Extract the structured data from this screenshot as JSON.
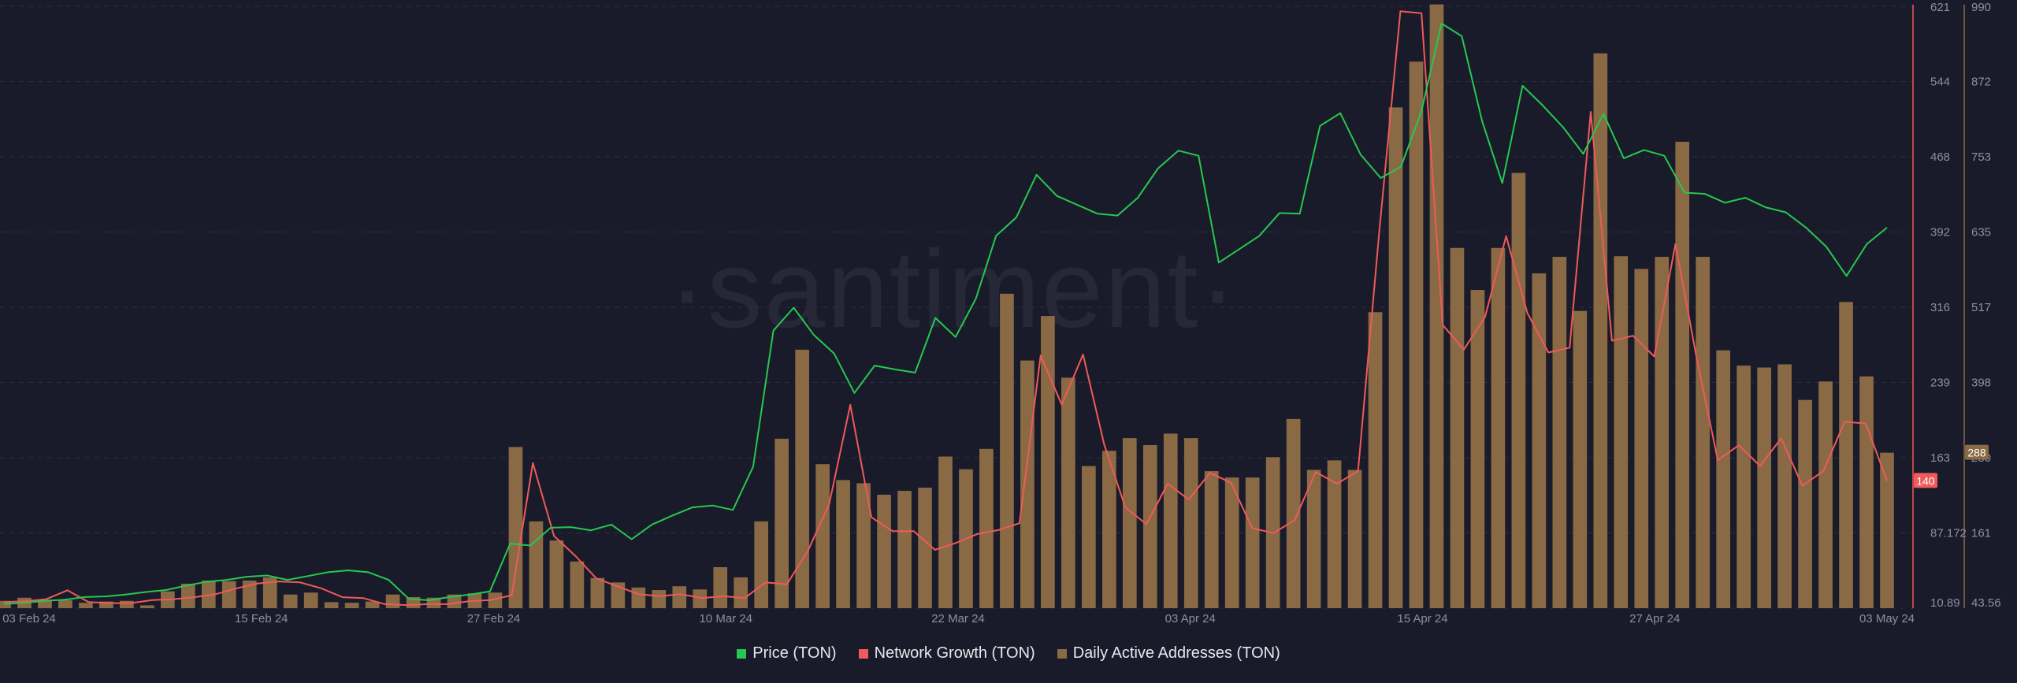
{
  "watermark": "·santiment·",
  "legend": [
    {
      "label": "Price (TON)",
      "color": "#26c84f"
    },
    {
      "label": "Network Growth (TON)",
      "color": "#ef5a5a"
    },
    {
      "label": "Daily Active Addresses (TON)",
      "color": "#8a6a45"
    }
  ],
  "chart_data": {
    "type": "bar",
    "title": "",
    "grid": true,
    "legend_position": "bottom-center",
    "x_ticks": [
      "03 Feb 24",
      "15 Feb 24",
      "27 Feb 24",
      "10 Mar 24",
      "22 Mar 24",
      "03 Apr 24",
      "15 Apr 24",
      "27 Apr 24",
      "03 May 24"
    ],
    "axes": {
      "network_growth": {
        "ticks": [
          "621",
          "544",
          "468",
          "392",
          "316",
          "239",
          "163",
          "87.172",
          "10.89"
        ],
        "range": [
          10.89,
          621
        ],
        "color": "#ef5a5a",
        "last_value_badge": "140"
      },
      "daily_active_addresses": {
        "ticks": [
          "990",
          "872",
          "753",
          "635",
          "517",
          "398",
          "280",
          "161",
          "43.56"
        ],
        "range": [
          43.56,
          990
        ],
        "color": "#8a6a45",
        "last_value_badge": "288"
      }
    },
    "series": [
      {
        "name": "Daily Active Addresses (TON)",
        "type": "bar",
        "axis": "daily_active_addresses",
        "values": [
          55,
          60,
          57,
          56,
          52,
          54,
          55,
          48,
          70,
          82,
          87,
          86,
          87,
          92,
          65,
          68,
          53,
          52,
          54,
          65,
          61,
          60,
          65,
          67,
          68,
          297,
          180,
          150,
          117,
          91,
          84,
          76,
          72,
          78,
          73,
          108,
          92,
          180,
          310,
          450,
          270,
          245,
          240,
          222,
          228,
          233,
          282,
          262,
          294,
          538,
          433,
          503,
          406,
          267,
          291,
          311,
          300,
          318,
          311,
          259,
          249,
          249,
          281,
          341,
          261,
          276,
          261,
          509,
          831,
          903,
          993,
          610,
          544,
          610,
          728,
          570,
          596,
          511,
          916,
          597,
          577,
          596,
          777,
          596,
          449,
          425,
          422,
          427,
          371,
          400,
          525,
          408,
          288
        ]
      },
      {
        "name": "Network Growth (TON)",
        "type": "line",
        "axis": "network_growth",
        "values": [
          17,
          18,
          20,
          29,
          17,
          16,
          16,
          19,
          20,
          22,
          25,
          31,
          36,
          38,
          37,
          31,
          22,
          21,
          15,
          14,
          15,
          15,
          18,
          19,
          24,
          158,
          84,
          64,
          41,
          33,
          25,
          23,
          25,
          21,
          23,
          21,
          37,
          35,
          69,
          116,
          217,
          103,
          89,
          89,
          70,
          77,
          86,
          90,
          97,
          267,
          217,
          268,
          177,
          113,
          96,
          137,
          121,
          148,
          138,
          92,
          87,
          100,
          149,
          137,
          150,
          392,
          616,
          614,
          298,
          273,
          306,
          388,
          310,
          270,
          275,
          514,
          282,
          287,
          266,
          380,
          265,
          161,
          176,
          155,
          183,
          135,
          150,
          200,
          198,
          140
        ]
      },
      {
        "name": "Price (TON)",
        "type": "line",
        "axis": "daily_active_addresses",
        "values": [
          50,
          52,
          55,
          57,
          61,
          62,
          65,
          69,
          72,
          79,
          85,
          88,
          93,
          95,
          88,
          94,
          100,
          103,
          100,
          88,
          58,
          56,
          61,
          65,
          70,
          145,
          142,
          170,
          171,
          166,
          175,
          152,
          175,
          189,
          202,
          205,
          198,
          266,
          480,
          516,
          473,
          444,
          382,
          425,
          419,
          414,
          500,
          470,
          530,
          629,
          658,
          725,
          692,
          678,
          664,
          661,
          689,
          735,
          763,
          755,
          587,
          608,
          629,
          665,
          664,
          802,
          822,
          757,
          720,
          738,
          824,
          963,
          943,
          810,
          712,
          865,
          834,
          800,
          758,
          821,
          751,
          764,
          755,
          697,
          695,
          681,
          689,
          674,
          666,
          642,
          612,
          566,
          616,
          642
        ]
      }
    ]
  }
}
